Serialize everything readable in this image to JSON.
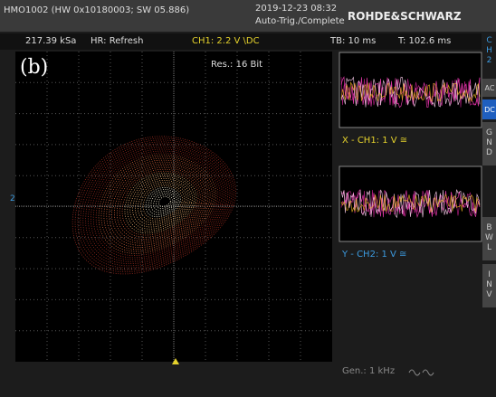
{
  "header": {
    "model": "HMO1002 (HW 0x10180003; SW 05.886)",
    "datetime": "2019-12-23 08:32",
    "status": "Auto-Trig./Complete",
    "brand": "ROHDE&SCHWARZ"
  },
  "status_bar": {
    "sample_rate": "217.39 kSa",
    "mode": "HR: Refresh",
    "channel": "CH1: 2.2 V \\DC",
    "timebase": "TB: 10 ms",
    "trigger_time": "T: 102.6 ms"
  },
  "display": {
    "panel_label": "(b)",
    "resolution": "Res.: 16 Bit",
    "y_marker": "2",
    "x_channel": "X - CH1: 1 V ≅",
    "y_channel": "Y - CH2: 1 V ≅",
    "generator": "Gen.: 1 kHz"
  },
  "side_menu": {
    "channel": "CH2",
    "items": [
      "AC",
      "DC",
      "GND",
      "BWL",
      "INV"
    ]
  }
}
